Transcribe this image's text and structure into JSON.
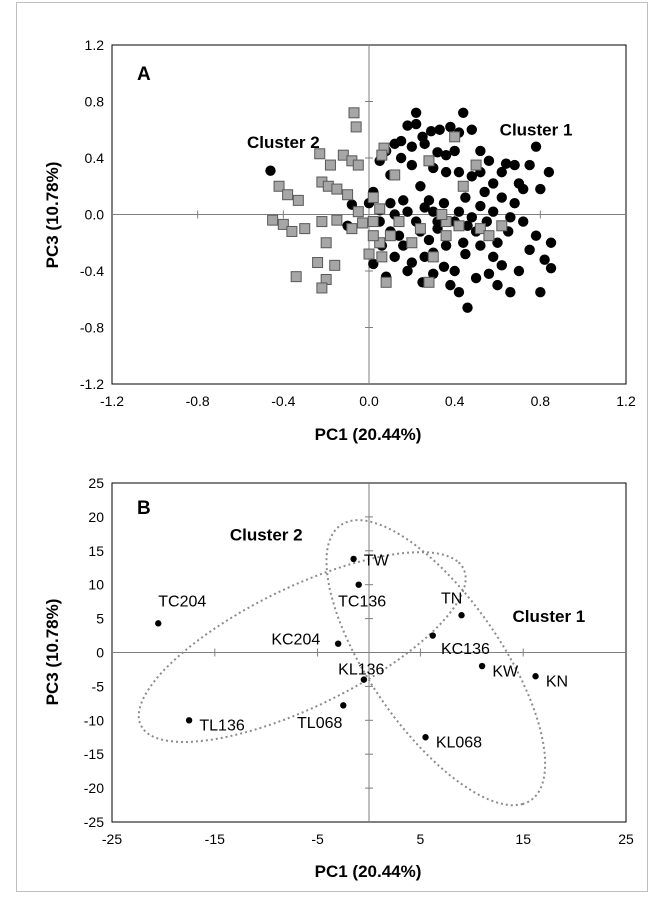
{
  "chart_data": [
    {
      "type": "scatter",
      "panel": "A",
      "xlabel": "PC1 (20.44%)",
      "ylabel": "PC3 (10.78%)",
      "xlim": [
        -1.2,
        1.2
      ],
      "ylim": [
        -1.2,
        1.2
      ],
      "xticks": [
        "-1.2",
        "-0.8",
        "-0.4",
        "0.0",
        "0.4",
        "0.8",
        "1.2"
      ],
      "yticks": [
        "1.2",
        "0.8",
        "0.4",
        "0.0",
        "-0.4",
        "-0.8",
        "-1.2"
      ],
      "xtick_values": [
        -1.2,
        -0.8,
        -0.4,
        0.0,
        0.4,
        0.8,
        1.2
      ],
      "ytick_values": [
        1.2,
        0.8,
        0.4,
        0.0,
        -0.4,
        -0.8,
        -1.2
      ],
      "grid": false,
      "annotations": [
        {
          "text": "Cluster 1",
          "x": 0.78,
          "y": 0.56
        },
        {
          "text": "Cluster 2",
          "x": -0.4,
          "y": 0.47
        }
      ],
      "series": [
        {
          "marker": "circle",
          "color": "#000000",
          "points": [
            [
              -0.46,
              0.31
            ],
            [
              -0.08,
              0.07
            ],
            [
              -0.1,
              -0.08
            ],
            [
              0.02,
              0.16
            ],
            [
              0.05,
              0.03
            ],
            [
              0.1,
              0.28
            ],
            [
              0.18,
              0.63
            ],
            [
              0.22,
              0.72
            ],
            [
              0.15,
              0.52
            ],
            [
              0.26,
              0.5
            ],
            [
              0.29,
              0.59
            ],
            [
              0.33,
              0.6
            ],
            [
              0.32,
              0.44
            ],
            [
              0.36,
              0.3
            ],
            [
              0.2,
              0.35
            ],
            [
              0.24,
              0.2
            ],
            [
              0.18,
              0.02
            ],
            [
              0.12,
              0.0
            ],
            [
              0.22,
              -0.05
            ],
            [
              0.28,
              -0.18
            ],
            [
              0.2,
              -0.34
            ],
            [
              0.12,
              -0.3
            ],
            [
              0.08,
              -0.44
            ],
            [
              0.18,
              -0.4
            ],
            [
              0.25,
              -0.48
            ],
            [
              0.3,
              -0.27
            ],
            [
              0.35,
              -0.37
            ],
            [
              0.38,
              -0.5
            ],
            [
              0.4,
              -0.4
            ],
            [
              0.42,
              -0.55
            ],
            [
              0.44,
              -0.2
            ],
            [
              0.46,
              -0.66
            ],
            [
              0.5,
              -0.45
            ],
            [
              0.56,
              -0.42
            ],
            [
              0.6,
              -0.5
            ],
            [
              0.62,
              -0.36
            ],
            [
              0.66,
              -0.55
            ],
            [
              0.7,
              -0.4
            ],
            [
              0.75,
              -0.25
            ],
            [
              0.8,
              -0.55
            ],
            [
              0.82,
              -0.32
            ],
            [
              0.85,
              -0.38
            ],
            [
              0.85,
              -0.2
            ],
            [
              0.78,
              -0.15
            ],
            [
              0.72,
              -0.05
            ],
            [
              0.68,
              0.08
            ],
            [
              0.62,
              0.12
            ],
            [
              0.58,
              0.22
            ],
            [
              0.56,
              0.38
            ],
            [
              0.52,
              0.45
            ],
            [
              0.48,
              0.6
            ],
            [
              0.44,
              0.72
            ],
            [
              0.42,
              0.58
            ],
            [
              0.4,
              0.45
            ],
            [
              0.38,
              0.62
            ],
            [
              0.42,
              0.3
            ],
            [
              0.45,
              0.12
            ],
            [
              0.48,
              0.27
            ],
            [
              0.52,
              0.06
            ],
            [
              0.55,
              -0.05
            ],
            [
              0.5,
              -0.12
            ],
            [
              0.45,
              -0.28
            ],
            [
              0.4,
              -0.05
            ],
            [
              0.35,
              0.08
            ],
            [
              0.3,
              0.02
            ],
            [
              0.32,
              -0.1
            ],
            [
              0.28,
              0.1
            ],
            [
              0.25,
              0.55
            ],
            [
              0.2,
              0.48
            ],
            [
              0.15,
              0.4
            ],
            [
              0.12,
              0.5
            ],
            [
              0.08,
              0.45
            ],
            [
              0.05,
              0.38
            ],
            [
              0.1,
              0.08
            ],
            [
              0.14,
              -0.15
            ],
            [
              0.06,
              -0.22
            ],
            [
              0.02,
              -0.35
            ],
            [
              0.22,
              0.64
            ],
            [
              0.52,
              0.3
            ],
            [
              0.62,
              0.3
            ],
            [
              0.68,
              0.35
            ],
            [
              0.7,
              0.22
            ],
            [
              0.75,
              0.35
            ],
            [
              0.78,
              0.48
            ],
            [
              0.8,
              0.18
            ],
            [
              0.84,
              0.3
            ],
            [
              0.72,
              0.18
            ],
            [
              0.6,
              -0.2
            ],
            [
              0.65,
              -0.12
            ],
            [
              0.58,
              -0.3
            ],
            [
              0.52,
              -0.22
            ],
            [
              0.36,
              -0.22
            ],
            [
              0.3,
              -0.42
            ],
            [
              0.26,
              -0.3
            ],
            [
              0.16,
              -0.22
            ],
            [
              0.1,
              -0.12
            ],
            [
              0.05,
              -0.05
            ],
            [
              0.0,
              0.08
            ],
            [
              0.26,
              0.05
            ],
            [
              0.32,
              -0.05
            ],
            [
              0.42,
              0.02
            ],
            [
              0.48,
              -0.02
            ],
            [
              0.58,
              0.02
            ],
            [
              0.66,
              -0.02
            ],
            [
              0.44,
              0.2
            ],
            [
              0.36,
              0.42
            ],
            [
              0.3,
              0.33
            ],
            [
              0.16,
              0.1
            ],
            [
              0.54,
              0.16
            ],
            [
              0.64,
              0.36
            ],
            [
              0.46,
              -0.08
            ],
            [
              0.24,
              -0.12
            ]
          ]
        },
        {
          "marker": "square",
          "color": "#a6a6a6",
          "points": [
            [
              -0.07,
              0.72
            ],
            [
              -0.06,
              0.62
            ],
            [
              -0.12,
              0.42
            ],
            [
              -0.23,
              0.43
            ],
            [
              -0.18,
              0.35
            ],
            [
              -0.08,
              0.38
            ],
            [
              -0.05,
              0.35
            ],
            [
              -0.42,
              0.2
            ],
            [
              -0.38,
              0.14
            ],
            [
              -0.33,
              0.1
            ],
            [
              -0.22,
              0.23
            ],
            [
              -0.19,
              0.2
            ],
            [
              -0.15,
              0.18
            ],
            [
              -0.1,
              0.14
            ],
            [
              -0.05,
              0.02
            ],
            [
              0.02,
              0.12
            ],
            [
              0.05,
              0.04
            ],
            [
              -0.45,
              -0.04
            ],
            [
              -0.4,
              -0.07
            ],
            [
              -0.36,
              -0.12
            ],
            [
              -0.3,
              -0.1
            ],
            [
              -0.22,
              -0.05
            ],
            [
              -0.15,
              -0.04
            ],
            [
              -0.08,
              -0.1
            ],
            [
              -0.03,
              -0.06
            ],
            [
              0.02,
              -0.05
            ],
            [
              -0.2,
              -0.2
            ],
            [
              -0.24,
              -0.34
            ],
            [
              -0.2,
              -0.46
            ],
            [
              -0.16,
              -0.36
            ],
            [
              -0.34,
              -0.44
            ],
            [
              -0.22,
              -0.52
            ],
            [
              0.08,
              -0.48
            ],
            [
              0.06,
              -0.3
            ],
            [
              0.05,
              -0.2
            ],
            [
              0.02,
              -0.15
            ],
            [
              0.0,
              -0.28
            ],
            [
              0.1,
              -0.15
            ],
            [
              0.14,
              -0.05
            ],
            [
              0.2,
              -0.2
            ],
            [
              0.24,
              -0.1
            ],
            [
              0.3,
              -0.3
            ],
            [
              0.28,
              -0.48
            ],
            [
              0.36,
              -0.15
            ],
            [
              0.42,
              -0.08
            ],
            [
              0.44,
              0.2
            ],
            [
              0.5,
              0.35
            ],
            [
              0.4,
              0.55
            ],
            [
              0.28,
              0.38
            ],
            [
              0.12,
              0.28
            ],
            [
              0.07,
              0.47
            ],
            [
              0.06,
              0.42
            ],
            [
              0.36,
              -0.05
            ],
            [
              0.52,
              -0.1
            ],
            [
              0.56,
              -0.15
            ],
            [
              0.62,
              -0.08
            ],
            [
              0.34,
              0.0
            ]
          ]
        }
      ]
    },
    {
      "type": "scatter",
      "panel": "B",
      "xlabel": "PC1 (20.44%)",
      "ylabel": "PC3 (10.78%)",
      "xlim": [
        -25,
        25
      ],
      "ylim": [
        -25,
        25
      ],
      "xticks": [
        "-25",
        "-15",
        "-5",
        "5",
        "15",
        "25"
      ],
      "yticks": [
        "25",
        "20",
        "15",
        "10",
        "5",
        "0",
        "-5",
        "-10",
        "-15",
        "-20",
        "-25"
      ],
      "xtick_values": [
        -25,
        -15,
        -5,
        5,
        15,
        25
      ],
      "ytick_values": [
        25,
        20,
        15,
        10,
        5,
        0,
        -5,
        -10,
        -15,
        -20,
        -25
      ],
      "grid": false,
      "annotations": [
        {
          "text": "Cluster 1",
          "x": 17.5,
          "y": 4.5
        },
        {
          "text": "Cluster 2",
          "x": -10,
          "y": 16.5
        }
      ],
      "ellipses": [
        {
          "cx": -6.5,
          "cy": 0.8,
          "rx": 19.7,
          "ry": 7.8,
          "angle_deg": 40
        },
        {
          "cx": 6.5,
          "cy": -1.5,
          "rx": 22.5,
          "ry": 7.0,
          "angle_deg": -68
        }
      ],
      "points": [
        {
          "label": "TW",
          "x": -1.5,
          "y": 13.8,
          "label_dx": 1.0,
          "label_dy": -0.2
        },
        {
          "label": "TC136",
          "x": -1.0,
          "y": 10.0,
          "label_dx": -2.0,
          "label_dy": -2.5
        },
        {
          "label": "TN",
          "x": 9.0,
          "y": 5.5,
          "label_dx": -2.0,
          "label_dy": 2.5
        },
        {
          "label": "TC204",
          "x": -20.5,
          "y": 4.3,
          "label_dx": 0.0,
          "label_dy": 3.2
        },
        {
          "label": "KC136",
          "x": 6.2,
          "y": 2.5,
          "label_dx": 0.8,
          "label_dy": -2.0
        },
        {
          "label": "KC204",
          "x": -3.0,
          "y": 1.3,
          "label_dx": -6.5,
          "label_dy": 0.6
        },
        {
          "label": "KL136",
          "x": -0.5,
          "y": -4.0,
          "label_dx": -2.5,
          "label_dy": 1.5
        },
        {
          "label": "KW",
          "x": 11.0,
          "y": -2.0,
          "label_dx": 1.0,
          "label_dy": -0.8
        },
        {
          "label": "KN",
          "x": 16.2,
          "y": -3.5,
          "label_dx": 1.0,
          "label_dy": -0.8
        },
        {
          "label": "TL136",
          "x": -17.5,
          "y": -10.0,
          "label_dx": 1.0,
          "label_dy": -0.8
        },
        {
          "label": "TL068",
          "x": -2.5,
          "y": -7.8,
          "label_dx": -4.5,
          "label_dy": -2.6
        },
        {
          "label": "KL068",
          "x": 5.5,
          "y": -12.5,
          "label_dx": 1.0,
          "label_dy": -0.8
        }
      ]
    }
  ]
}
